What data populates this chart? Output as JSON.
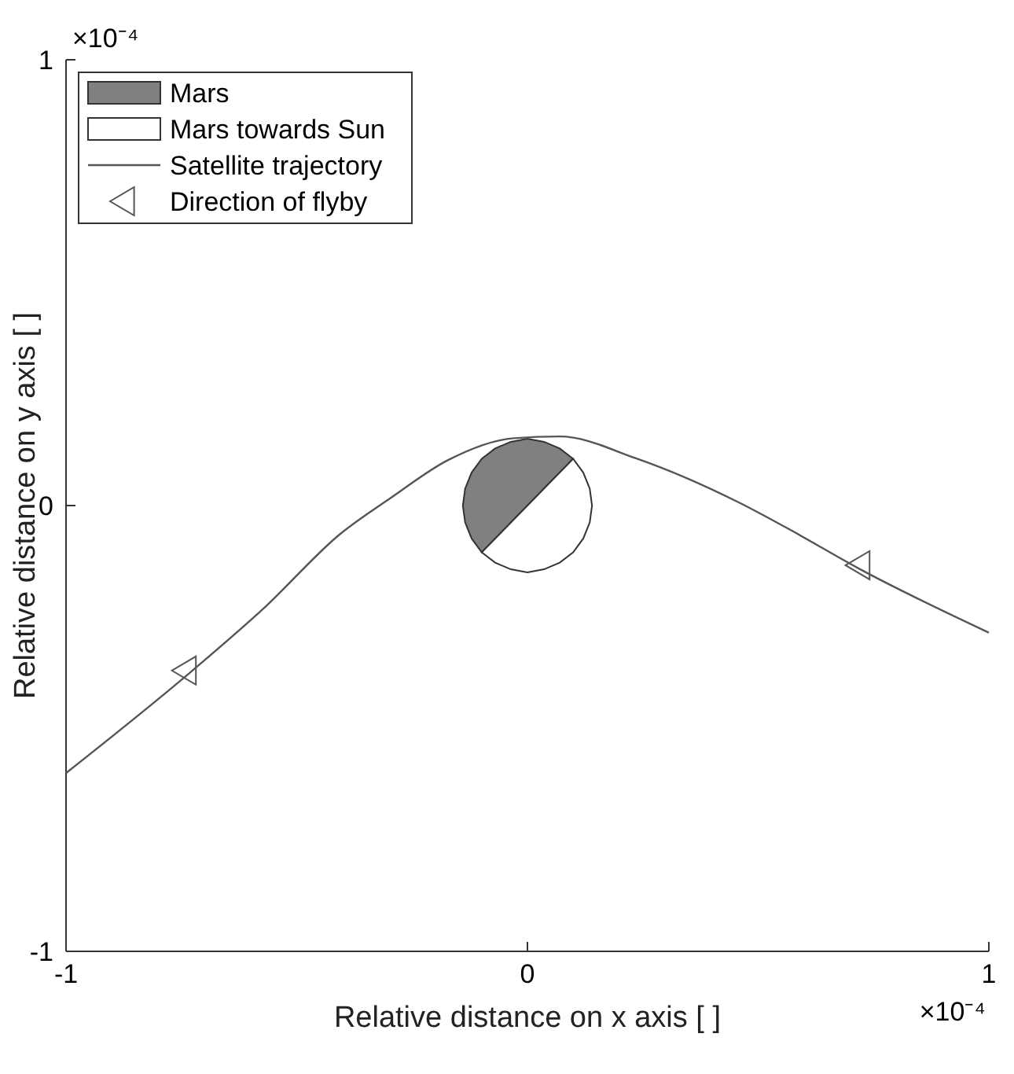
{
  "chart_data": {
    "type": "line",
    "xlabel": "Relative distance on x axis [ ]",
    "ylabel": "Relative distance on y axis [ ]",
    "xlim": [
      -1,
      1
    ],
    "ylim": [
      -1,
      1
    ],
    "xticks": [
      -1,
      0,
      1
    ],
    "yticks": [
      -1,
      0,
      1
    ],
    "grid": false,
    "legend": "top left",
    "annotations": [
      "×10⁻⁴",
      "×10⁻⁴"
    ],
    "series": [
      {
        "name": "Mars",
        "type": "area",
        "color": "#808080",
        "x": [
          0.099,
          0.07,
          0.036,
          0,
          -0.036,
          -0.07,
          -0.099,
          -0.121,
          -0.135,
          -0.14,
          -0.135,
          -0.121,
          -0.099
        ],
        "values": [
          0.105,
          0.128,
          0.143,
          0.15,
          0.143,
          0.128,
          0.105,
          0.074,
          0.038,
          0,
          -0.038,
          -0.074,
          -0.105
        ]
      },
      {
        "name": "Mars towards Sun",
        "type": "area",
        "color": "#ffffff",
        "x": [
          -0.099,
          -0.07,
          -0.036,
          0,
          0.036,
          0.07,
          0.099,
          0.121,
          0.135,
          0.14,
          0.135,
          0.121,
          0.099
        ],
        "values": [
          -0.105,
          -0.128,
          -0.143,
          -0.15,
          -0.143,
          -0.128,
          -0.105,
          -0.074,
          -0.038,
          0,
          0.038,
          0.074,
          0.105
        ]
      },
      {
        "name": "Satellite trajectory",
        "color": "#555555",
        "line_style": "solid",
        "x": [
          -1,
          -0.726,
          -0.57,
          -0.405,
          -0.295,
          -0.172,
          -0.03,
          0.07,
          0.235,
          0.458,
          0.567,
          0.723,
          1
        ],
        "values": [
          -0.6,
          -0.37,
          -0.229,
          -0.063,
          0.018,
          0.102,
          0.151,
          0.155,
          0.106,
          0.007,
          -0.053,
          -0.144,
          -0.285
        ]
      },
      {
        "name": "Direction of flyby",
        "type": "scatter",
        "color": "#555555",
        "marker": "triangle",
        "x": [
          -0.74,
          0.72
        ],
        "values": [
          -0.37,
          -0.134
        ]
      }
    ]
  }
}
